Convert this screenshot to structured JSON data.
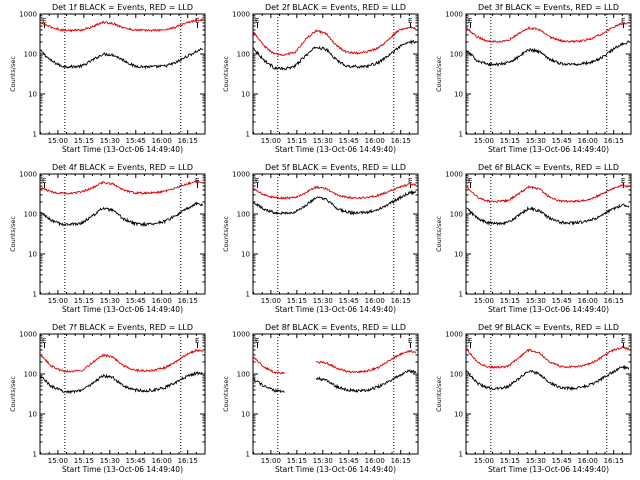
{
  "figure": {
    "x_tick_labels": [
      "15:00",
      "15:15",
      "15:30",
      "15:45",
      "16:00",
      "16:15"
    ],
    "y_tick_labels": [
      "1",
      "10",
      "100",
      "1000"
    ],
    "x_axis_label": "Start Time (13-Oct-06 14:49:40)",
    "y_axis_label": "Counts/sec",
    "marker_label": "E",
    "colors": {
      "events": "#000000",
      "lld": "#e00000",
      "frame": "#000000"
    }
  },
  "chart_data": [
    {
      "type": "line",
      "title": "Det 1f BLACK = Events, RED = LLD",
      "y_scale": "log",
      "xlim": [
        "14:49:40",
        "16:25:00"
      ],
      "ylim": [
        1,
        1000
      ],
      "x": [
        "14:50",
        "14:56",
        "15:02",
        "15:08",
        "15:14",
        "15:20",
        "15:26",
        "15:32",
        "15:38",
        "15:44",
        "15:50",
        "15:56",
        "16:02",
        "16:08",
        "16:14",
        "16:20",
        "16:24"
      ],
      "dotted_verticals": [
        "15:04",
        "16:11"
      ],
      "series": [
        {
          "values": [
            120,
            68,
            50,
            48,
            50,
            70,
            100,
            95,
            70,
            50,
            48,
            48,
            50,
            60,
            85,
            115,
            140
          ]
        },
        {
          "values": [
            600,
            470,
            400,
            390,
            400,
            480,
            620,
            580,
            450,
            400,
            390,
            390,
            400,
            470,
            600,
            700,
            720
          ]
        }
      ]
    },
    {
      "type": "line",
      "title": "Det 2f BLACK = Events, RED = LLD",
      "y_scale": "log",
      "xlim": [
        "14:49:40",
        "16:25:00"
      ],
      "ylim": [
        1,
        1000
      ],
      "x": [
        "14:50",
        "14:56",
        "15:02",
        "15:08",
        "15:14",
        "15:20",
        "15:26",
        "15:32",
        "15:38",
        "15:44",
        "15:50",
        "15:56",
        "16:02",
        "16:08",
        "16:14",
        "16:20",
        "16:24"
      ],
      "dotted_verticals": [
        "15:04",
        "16:11"
      ],
      "series": [
        {
          "values": [
            140,
            70,
            45,
            42,
            50,
            90,
            150,
            130,
            70,
            50,
            48,
            50,
            60,
            90,
            150,
            200,
            200
          ]
        },
        {
          "values": [
            350,
            160,
            100,
            95,
            110,
            230,
            380,
            320,
            160,
            110,
            105,
            115,
            140,
            230,
            400,
            470,
            430
          ]
        }
      ]
    },
    {
      "type": "line",
      "title": "Det 3f BLACK = Events, RED = LLD",
      "y_scale": "log",
      "xlim": [
        "14:49:40",
        "16:25:00"
      ],
      "ylim": [
        1,
        1000
      ],
      "x": [
        "14:50",
        "14:56",
        "15:02",
        "15:08",
        "15:14",
        "15:20",
        "15:26",
        "15:32",
        "15:38",
        "15:44",
        "15:50",
        "15:56",
        "16:02",
        "16:08",
        "16:14",
        "16:20",
        "16:24"
      ],
      "dotted_verticals": [
        "15:04",
        "16:11"
      ],
      "series": [
        {
          "values": [
            120,
            70,
            55,
            55,
            60,
            85,
            130,
            115,
            75,
            58,
            55,
            56,
            62,
            80,
            125,
            180,
            200
          ]
        },
        {
          "values": [
            450,
            270,
            210,
            205,
            220,
            320,
            450,
            410,
            270,
            215,
            205,
            210,
            240,
            310,
            450,
            580,
            600
          ]
        }
      ]
    },
    {
      "type": "line",
      "title": "Det 4f BLACK = Events, RED = LLD",
      "y_scale": "log",
      "xlim": [
        "14:49:40",
        "16:25:00"
      ],
      "ylim": [
        1,
        1000
      ],
      "x": [
        "14:50",
        "14:56",
        "15:02",
        "15:08",
        "15:14",
        "15:20",
        "15:26",
        "15:32",
        "15:38",
        "15:44",
        "15:50",
        "15:56",
        "16:02",
        "16:08",
        "16:14",
        "16:20",
        "16:24"
      ],
      "dotted_verticals": [
        "15:04",
        "16:11"
      ],
      "series": [
        {
          "values": [
            110,
            70,
            55,
            55,
            60,
            90,
            140,
            120,
            75,
            58,
            55,
            58,
            66,
            90,
            130,
            180,
            170
          ]
        },
        {
          "values": [
            450,
            360,
            330,
            330,
            360,
            450,
            620,
            560,
            400,
            340,
            330,
            340,
            370,
            450,
            560,
            650,
            620
          ]
        }
      ]
    },
    {
      "type": "line",
      "title": "Det 5f BLACK = Events, RED = LLD",
      "y_scale": "log",
      "xlim": [
        "14:49:40",
        "16:25:00"
      ],
      "ylim": [
        1,
        1000
      ],
      "x": [
        "14:50",
        "14:56",
        "15:02",
        "15:08",
        "15:14",
        "15:20",
        "15:26",
        "15:32",
        "15:38",
        "15:44",
        "15:50",
        "15:56",
        "16:02",
        "16:08",
        "16:14",
        "16:20",
        "16:24"
      ],
      "dotted_verticals": [
        "15:04",
        "16:11"
      ],
      "series": [
        {
          "values": [
            200,
            130,
            110,
            105,
            110,
            160,
            260,
            230,
            140,
            110,
            105,
            110,
            130,
            175,
            250,
            340,
            350
          ]
        },
        {
          "values": [
            420,
            300,
            260,
            250,
            260,
            340,
            470,
            430,
            300,
            260,
            250,
            260,
            290,
            360,
            460,
            560,
            550
          ]
        }
      ]
    },
    {
      "type": "line",
      "title": "Det 6f BLACK = Events, RED = LLD",
      "y_scale": "log",
      "xlim": [
        "14:49:40",
        "16:25:00"
      ],
      "ylim": [
        1,
        1000
      ],
      "x": [
        "14:50",
        "14:56",
        "15:02",
        "15:08",
        "15:14",
        "15:20",
        "15:26",
        "15:32",
        "15:38",
        "15:44",
        "15:50",
        "15:56",
        "16:02",
        "16:08",
        "16:14",
        "16:20",
        "16:24"
      ],
      "dotted_verticals": [
        "15:04",
        "16:11"
      ],
      "series": [
        {
          "values": [
            140,
            80,
            60,
            58,
            62,
            90,
            140,
            120,
            78,
            62,
            60,
            62,
            70,
            90,
            130,
            170,
            160
          ]
        },
        {
          "values": [
            500,
            270,
            210,
            205,
            215,
            320,
            480,
            420,
            260,
            210,
            205,
            210,
            240,
            310,
            430,
            520,
            480
          ]
        }
      ]
    },
    {
      "type": "line",
      "title": "Det 7f BLACK = Events, RED = LLD",
      "y_scale": "log",
      "xlim": [
        "14:49:40",
        "16:25:00"
      ],
      "ylim": [
        1,
        1000
      ],
      "x": [
        "14:50",
        "14:56",
        "15:02",
        "15:08",
        "15:14",
        "15:20",
        "15:26",
        "15:32",
        "15:38",
        "15:44",
        "15:50",
        "15:56",
        "16:02",
        "16:08",
        "16:14",
        "16:20",
        "16:24"
      ],
      "dotted_verticals": [
        "15:04",
        "16:11"
      ],
      "series": [
        {
          "values": [
            90,
            50,
            38,
            36,
            40,
            58,
            90,
            80,
            50,
            40,
            38,
            40,
            46,
            60,
            85,
            105,
            100
          ]
        },
        {
          "values": [
            300,
            160,
            120,
            115,
            125,
            190,
            300,
            260,
            160,
            125,
            120,
            125,
            145,
            200,
            300,
            390,
            370
          ]
        }
      ]
    },
    {
      "type": "line",
      "title": "Det 8f BLACK = Events, RED = LLD",
      "y_scale": "log",
      "xlim": [
        "14:49:40",
        "16:25:00"
      ],
      "ylim": [
        1,
        1000
      ],
      "x": [
        "14:50",
        "14:56",
        "15:02",
        "15:08",
        "15:14",
        "15:20",
        "15:26",
        "15:32",
        "15:38",
        "15:44",
        "15:50",
        "15:56",
        "16:02",
        "16:08",
        "16:14",
        "16:20",
        "16:24"
      ],
      "dotted_verticals": [
        "15:04",
        "16:11"
      ],
      "series": [
        {
          "values": [
            75,
            50,
            38,
            36,
            null,
            null,
            80,
            70,
            48,
            40,
            38,
            40,
            48,
            65,
            90,
            120,
            110
          ]
        },
        {
          "values": [
            260,
            150,
            110,
            105,
            null,
            null,
            200,
            190,
            140,
            115,
            110,
            120,
            145,
            210,
            300,
            380,
            350
          ]
        }
      ]
    },
    {
      "type": "line",
      "title": "Det 9f BLACK = Events, RED = LLD",
      "y_scale": "log",
      "xlim": [
        "14:49:40",
        "16:25:00"
      ],
      "ylim": [
        1,
        1000
      ],
      "x": [
        "14:50",
        "14:56",
        "15:02",
        "15:08",
        "15:14",
        "15:20",
        "15:26",
        "15:32",
        "15:38",
        "15:44",
        "15:50",
        "15:56",
        "16:02",
        "16:08",
        "16:14",
        "16:20",
        "16:24"
      ],
      "dotted_verticals": [
        "15:04",
        "16:11"
      ],
      "series": [
        {
          "values": [
            120,
            60,
            45,
            43,
            48,
            75,
            120,
            100,
            60,
            46,
            44,
            46,
            55,
            75,
            110,
            150,
            140
          ]
        },
        {
          "values": [
            420,
            200,
            150,
            145,
            155,
            250,
            400,
            340,
            200,
            155,
            150,
            155,
            185,
            260,
            380,
            460,
            420
          ]
        }
      ]
    }
  ]
}
